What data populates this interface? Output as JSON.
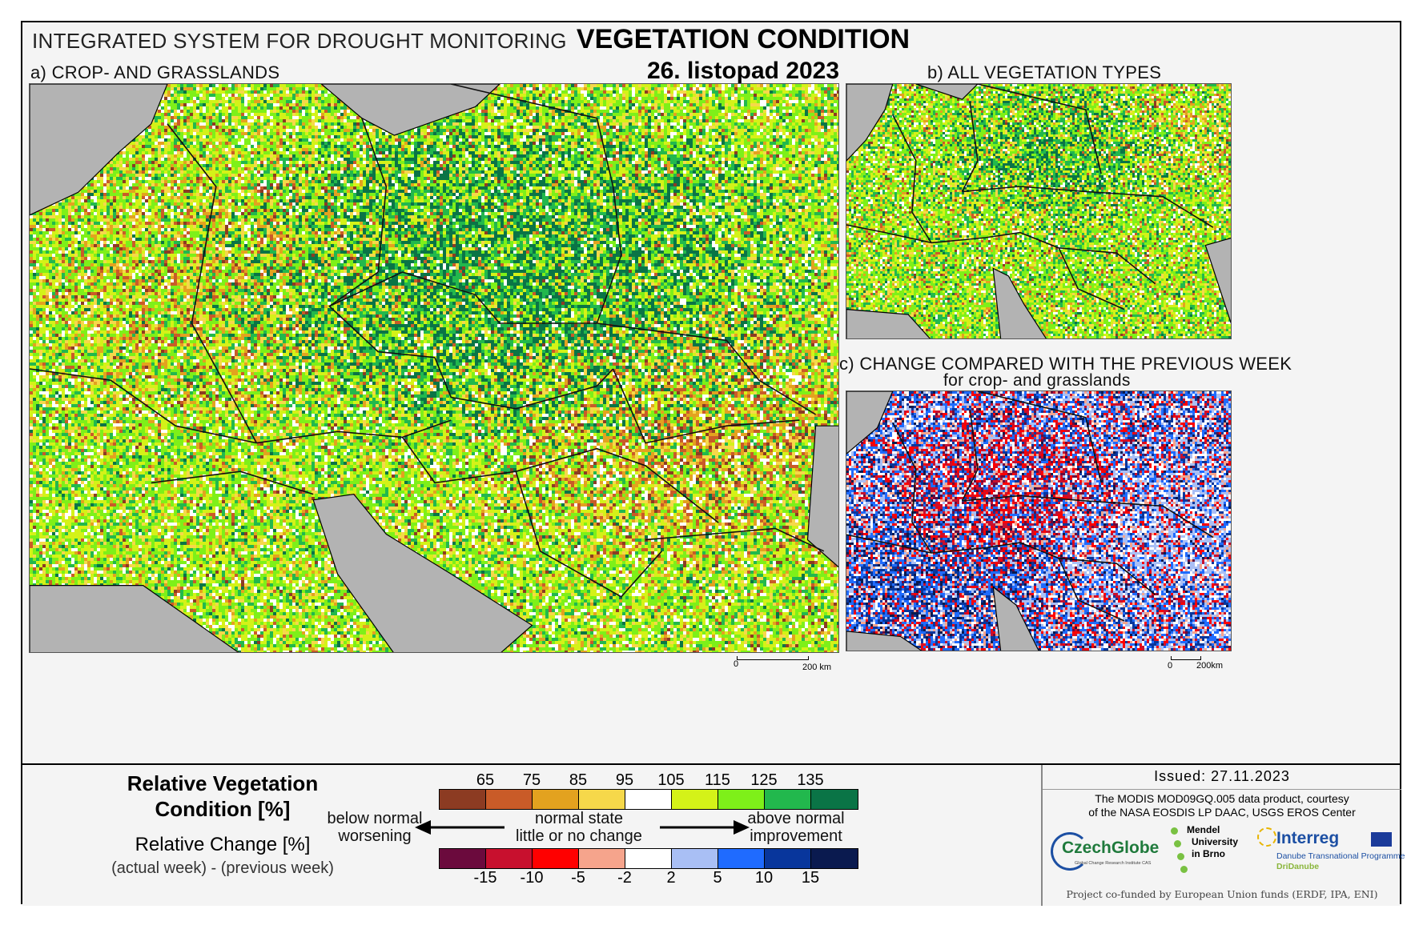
{
  "header": {
    "system": "INTEGRATED SYSTEM FOR DROUGHT MONITORING",
    "title": "VEGETATION CONDITION",
    "date": "26. listopad 2023"
  },
  "panels": {
    "a": "a) CROP- AND GRASSLANDS",
    "b": "b) ALL VEGETATION TYPES",
    "c": "c) CHANGE COMPARED WITH THE PREVIOUS WEEK",
    "c_sub": "for crop- and grasslands"
  },
  "scale_bars": {
    "a_zero": "0",
    "a_label": "200 km",
    "c_zero": "0",
    "c_label": "200km"
  },
  "legend": {
    "title_line1": "Relative Vegetation",
    "title_line2": "Condition [%]",
    "change_title": "Relative Change [%]",
    "change_formula": "(actual week) - (previous week)",
    "condition_ticks": [
      "65",
      "75",
      "85",
      "95",
      "105",
      "115",
      "125",
      "135"
    ],
    "condition_colors": [
      "#8c3b22",
      "#c95b28",
      "#e3a21f",
      "#f6d84a",
      "#ffffff",
      "#d4f218",
      "#7ef019",
      "#22b84d",
      "#0a7446"
    ],
    "change_ticks": [
      "-15",
      "-10",
      "-5",
      "-2",
      "2",
      "5",
      "10",
      "15"
    ],
    "change_colors": [
      "#6b0a3d",
      "#c8102e",
      "#ff0000",
      "#f6a48c",
      "#ffffff",
      "#a9bff5",
      "#1f6bff",
      "#08369c",
      "#0a1a4f"
    ],
    "below_line1": "below normal",
    "below_line2": "worsening",
    "normal_line1": "normal state",
    "normal_line2": "little or no change",
    "above_line1": "above normal",
    "above_line2": "improvement"
  },
  "info": {
    "issued": "Issued: 27.11.2023",
    "modis_line1": "The MODIS MOD09GQ.005 data product, courtesy",
    "modis_line2": "of the NASA EOSDIS LP DAAC, USGS EROS Center",
    "czechglobe": "CzechGlobe",
    "czechglobe_sub": "Global Change Research Institute CAS",
    "mendel_line1": "Mendel",
    "mendel_line2": "University",
    "mendel_line3": "in Brno",
    "interreg": "Interreg",
    "interreg_sub": "Danube Transnational Programme",
    "dridanube": "DriDanube",
    "cofund": "Project co-funded by European Union funds (ERDF, IPA, ENI)"
  }
}
